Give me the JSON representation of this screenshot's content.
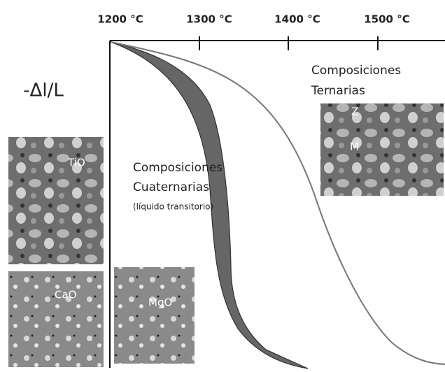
{
  "axis": {
    "ticks": [
      "1200 °C",
      "1300 °C",
      "1400 °C",
      "1500 °C"
    ],
    "y_label": "-Δl/L"
  },
  "annotations": {
    "ternary": [
      "Composiciones",
      "Ternarias"
    ],
    "quaternary": [
      "Composiciones",
      "Cuaternarias"
    ],
    "quaternary_note": "(líquido transitorio)"
  },
  "images": {
    "tio": "TiO",
    "cao": "CaO",
    "mgo": "MgO",
    "ternary_labels": [
      "Z",
      "M"
    ]
  }
}
